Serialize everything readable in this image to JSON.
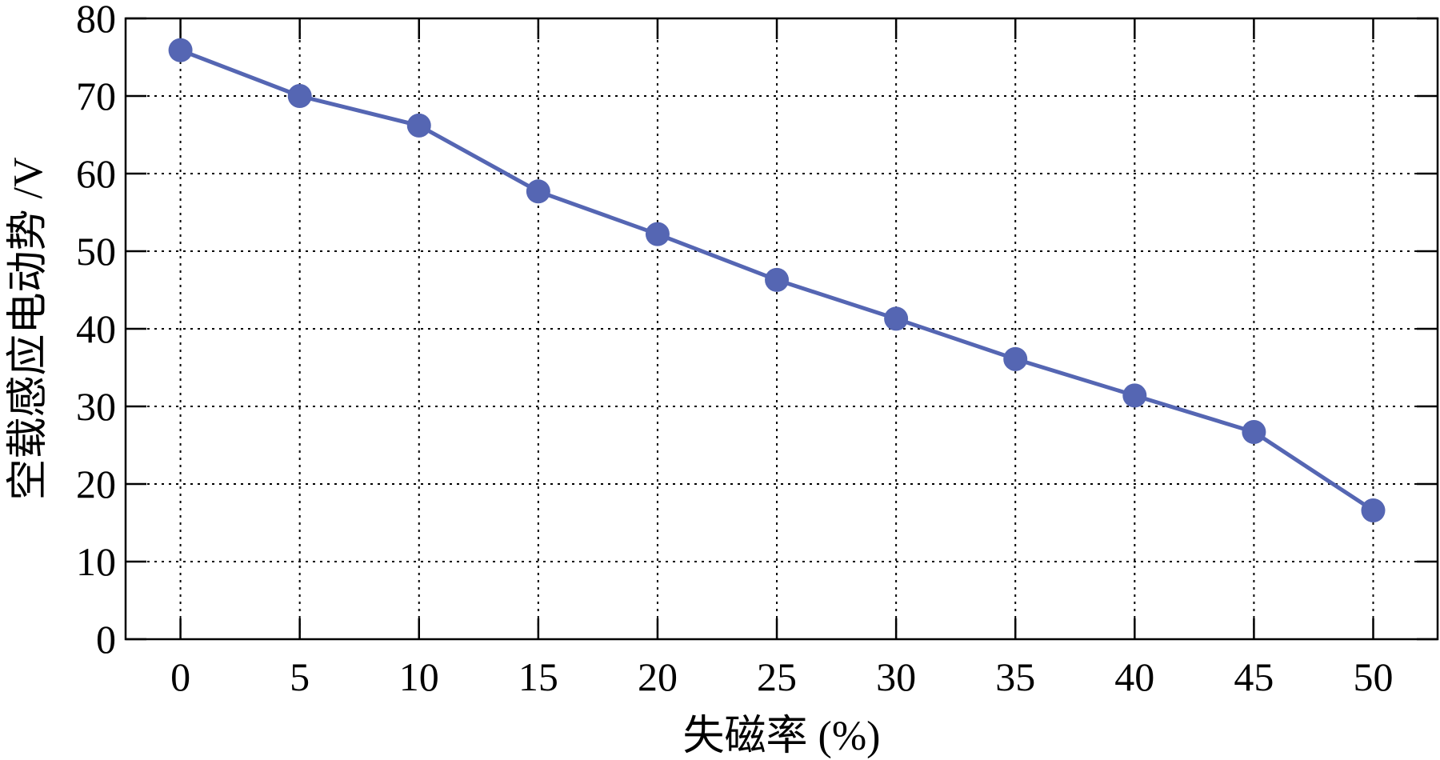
{
  "chart_data": {
    "type": "line",
    "xlabel": "失磁率 (%)",
    "ylabel": "空载感应电动势 /V",
    "xlim": [
      -2.3,
      52.7
    ],
    "ylim": [
      0,
      80
    ],
    "x_ticks": [
      0,
      5,
      10,
      15,
      20,
      25,
      30,
      35,
      40,
      45,
      50
    ],
    "y_ticks": [
      0,
      10,
      20,
      30,
      40,
      50,
      60,
      70,
      80
    ],
    "grid": true,
    "series": [
      {
        "color": "#5566b3",
        "x": [
          0,
          5,
          10,
          15,
          20,
          25,
          30,
          35,
          40,
          45,
          50
        ],
        "y": [
          75.9,
          70.0,
          66.2,
          57.7,
          52.2,
          46.3,
          41.3,
          36.1,
          31.4,
          26.7,
          16.6
        ]
      }
    ]
  }
}
